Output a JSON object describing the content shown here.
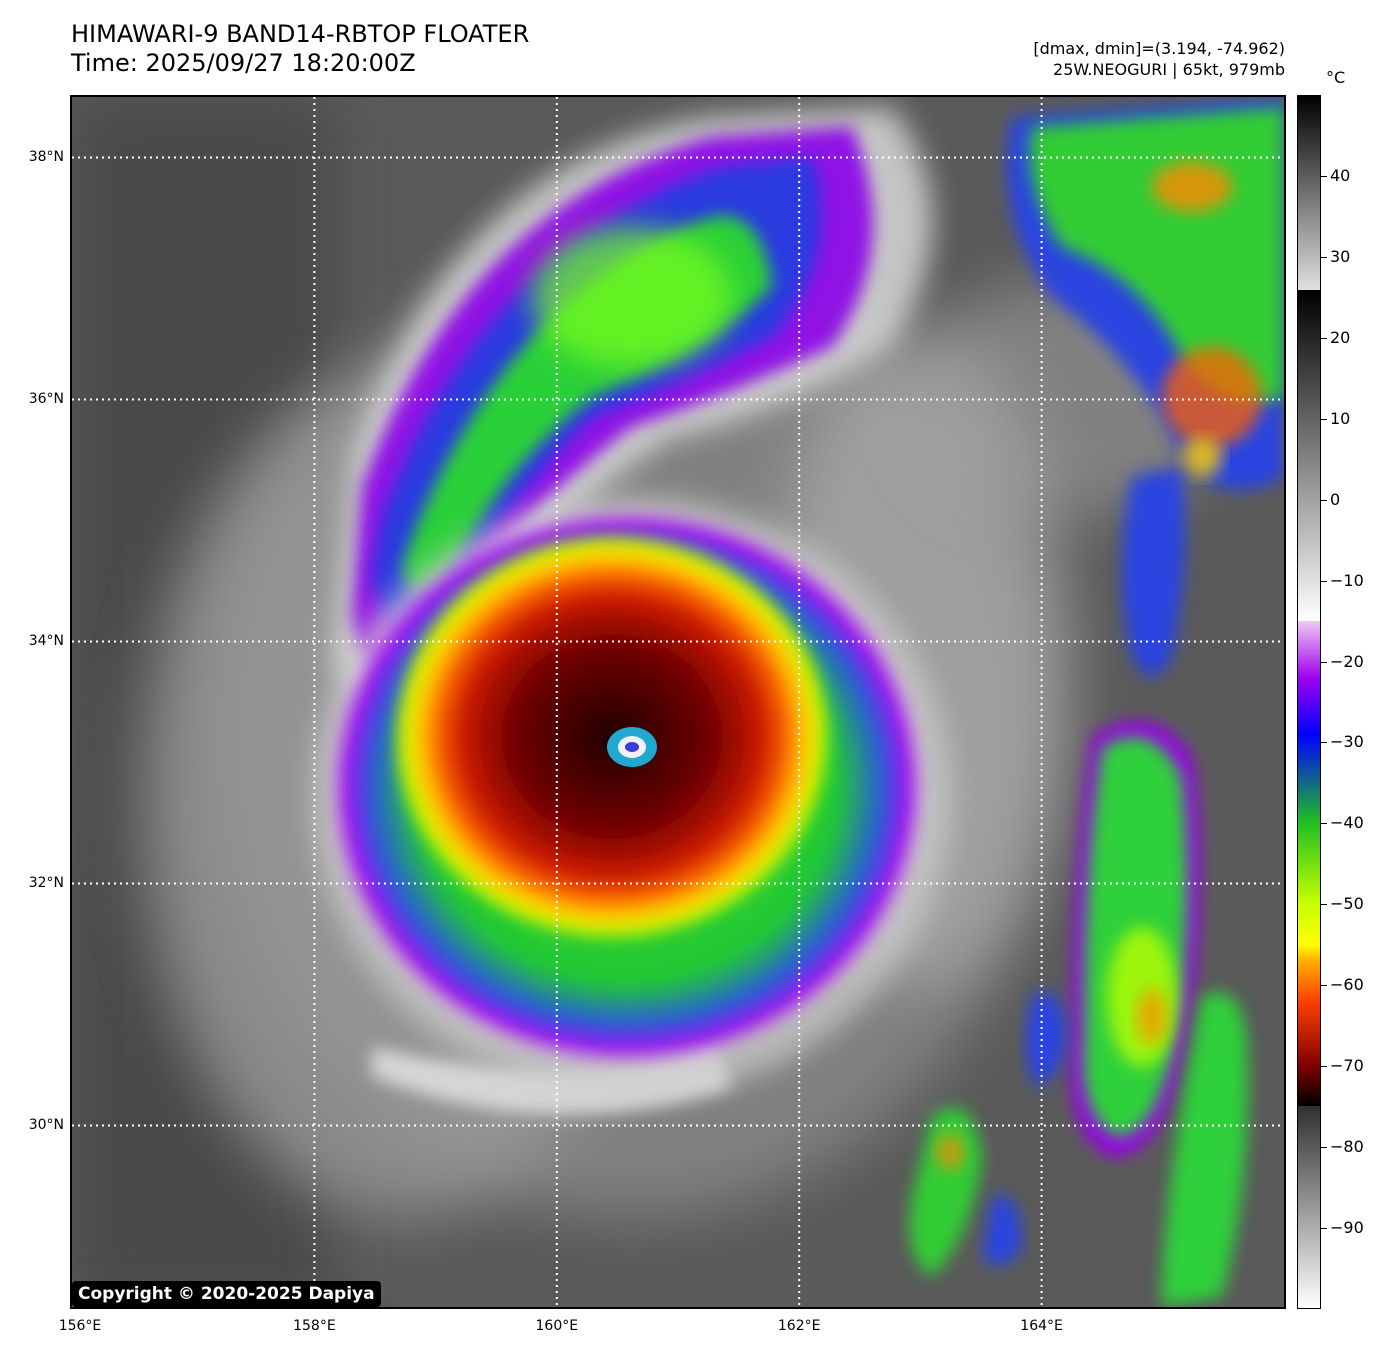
{
  "header": {
    "title_line1": "HIMAWARI-9 BAND14-RBTOP FLOATER",
    "title_line2": "Time: 2025/09/27 18:20:00Z",
    "stats_line1": "[dmax, dmin]=(3.194, -74.962)",
    "stats_line2": "25W.NEOGURI | 65kt, 979mb"
  },
  "map": {
    "lon_range": [
      156,
      166
    ],
    "lat_range": [
      28.5,
      38.5
    ],
    "lat_labels": [
      "38°N",
      "36°N",
      "34°N",
      "32°N",
      "30°N"
    ],
    "lat_values": [
      38,
      36,
      34,
      32,
      30
    ],
    "lon_labels": [
      "156°E",
      "158°E",
      "160°E",
      "162°E",
      "164°E"
    ],
    "lon_values": [
      156,
      158,
      160,
      162,
      164
    ],
    "storm_center": {
      "lon": 160.55,
      "lat": 33.2
    },
    "copyright": "Copyright © 2020-2025 Dapiya"
  },
  "colorbar": {
    "unit": "°C",
    "range": [
      -100,
      50
    ],
    "tick_labels": [
      "40",
      "30",
      "20",
      "10",
      "0",
      "−10",
      "−20",
      "−30",
      "−40",
      "−50",
      "−60",
      "−70",
      "−80",
      "−90"
    ],
    "tick_values": [
      40,
      30,
      20,
      10,
      0,
      -10,
      -20,
      -30,
      -40,
      -50,
      -60,
      -70,
      -80,
      -90
    ]
  }
}
